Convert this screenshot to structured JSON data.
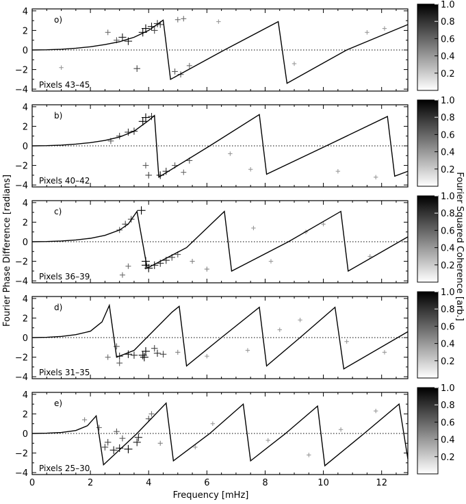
{
  "figure": {
    "xlabel": "Frequency [mHz]",
    "ylabel": "Fourier Phase Difference [radians]",
    "colorbar_label": "Fourier Squared Coherence [arb.]",
    "colorbar_ticks": [
      "1.0",
      "0.8",
      "0.6",
      "0.4",
      "0.2"
    ],
    "x_ticks": [
      "0",
      "2",
      "4",
      "6",
      "8",
      "10",
      "12"
    ],
    "y_ticks": [
      "4",
      "2",
      "0",
      "−2",
      "−4"
    ]
  },
  "chart_data": [
    {
      "type": "scatter",
      "panel": "o)",
      "pixels_label": "Pixels 43–45",
      "xlim": [
        0,
        12.9
      ],
      "ylim": [
        -4.2,
        4.2
      ],
      "zero_line": "dotted",
      "model_line": [
        [
          0,
          0
        ],
        [
          0.5,
          0.02
        ],
        [
          1,
          0.08
        ],
        [
          1.5,
          0.18
        ],
        [
          2,
          0.33
        ],
        [
          2.5,
          0.55
        ],
        [
          3,
          0.85
        ],
        [
          3.5,
          1.3
        ],
        [
          4,
          2.0
        ],
        [
          4.5,
          3.05
        ],
        [
          4.75,
          -3.0
        ],
        [
          6.6,
          0.0
        ],
        [
          8.45,
          2.9
        ],
        [
          8.75,
          -3.4
        ],
        [
          10.8,
          0.0
        ],
        [
          12.9,
          2.6
        ]
      ],
      "points": [
        [
          3.1,
          1.3,
          0.9
        ],
        [
          3.3,
          0.9,
          0.9
        ],
        [
          3.8,
          1.8,
          1.0
        ],
        [
          3.9,
          2.2,
          1.0
        ],
        [
          4.1,
          2.4,
          0.9
        ],
        [
          4.3,
          2.7,
          0.8
        ],
        [
          4.2,
          2.0,
          0.7
        ],
        [
          4.4,
          2.6,
          0.7
        ],
        [
          2.6,
          1.8,
          0.5
        ],
        [
          2.9,
          1.0,
          0.6
        ],
        [
          3.6,
          -1.9,
          0.7
        ],
        [
          4.9,
          -2.2,
          0.6
        ],
        [
          5.1,
          -2.5,
          0.6
        ],
        [
          5.4,
          -1.6,
          0.5
        ],
        [
          5.0,
          3.1,
          0.5
        ],
        [
          5.2,
          3.2,
          0.5
        ],
        [
          6.4,
          2.9,
          0.3
        ],
        [
          1.0,
          -1.8,
          0.3
        ],
        [
          9.0,
          -1.4,
          0.3
        ],
        [
          11.5,
          1.8,
          0.3
        ],
        [
          12.1,
          2.2,
          0.3
        ]
      ]
    },
    {
      "type": "scatter",
      "panel": "b)",
      "pixels_label": "Pixels 40–42",
      "xlim": [
        0,
        12.9
      ],
      "ylim": [
        -4.2,
        4.2
      ],
      "zero_line": "dotted",
      "model_line": [
        [
          0,
          0
        ],
        [
          0.5,
          0.02
        ],
        [
          1,
          0.08
        ],
        [
          1.5,
          0.18
        ],
        [
          2,
          0.33
        ],
        [
          2.5,
          0.55
        ],
        [
          3,
          0.9
        ],
        [
          3.5,
          1.5
        ],
        [
          4.0,
          2.6
        ],
        [
          4.2,
          3.1
        ],
        [
          4.35,
          -3.2
        ],
        [
          6.1,
          0.0
        ],
        [
          7.8,
          3.2
        ],
        [
          8.05,
          -2.9
        ],
        [
          10.1,
          0.0
        ],
        [
          12.2,
          3.0
        ],
        [
          12.45,
          -3.1
        ],
        [
          12.9,
          -2.6
        ]
      ],
      "points": [
        [
          3.8,
          2.5,
          1.0
        ],
        [
          3.9,
          2.9,
          1.0
        ],
        [
          3.5,
          1.5,
          0.8
        ],
        [
          3.3,
          1.4,
          0.8
        ],
        [
          3.0,
          1.0,
          0.7
        ],
        [
          2.7,
          0.5,
          0.6
        ],
        [
          4.1,
          3.0,
          0.8
        ],
        [
          4.4,
          -3.0,
          0.9
        ],
        [
          4.6,
          -2.6,
          0.8
        ],
        [
          4.9,
          -2.0,
          0.6
        ],
        [
          5.4,
          -1.5,
          0.6
        ],
        [
          3.9,
          -2.0,
          0.6
        ],
        [
          4.0,
          -3.0,
          0.7
        ],
        [
          5.2,
          -2.7,
          0.5
        ],
        [
          6.8,
          -0.8,
          0.3
        ],
        [
          7.5,
          -2.4,
          0.3
        ],
        [
          10.5,
          -2.6,
          0.3
        ],
        [
          11.8,
          -3.2,
          0.3
        ]
      ]
    },
    {
      "type": "scatter",
      "panel": "c)",
      "pixels_label": "Pixels 36–39",
      "xlim": [
        0,
        12.9
      ],
      "ylim": [
        -4.2,
        4.2
      ],
      "zero_line": "dotted",
      "model_line": [
        [
          0,
          0
        ],
        [
          0.5,
          0.02
        ],
        [
          1,
          0.08
        ],
        [
          1.5,
          0.18
        ],
        [
          2,
          0.35
        ],
        [
          2.5,
          0.65
        ],
        [
          3,
          1.2
        ],
        [
          3.3,
          1.8
        ],
        [
          3.6,
          3.1
        ],
        [
          3.95,
          -2.7
        ],
        [
          5.3,
          -0.6
        ],
        [
          6.6,
          3.1
        ],
        [
          6.85,
          -3.0
        ],
        [
          8.8,
          0.0
        ],
        [
          10.6,
          3.1
        ],
        [
          10.85,
          -3.0
        ],
        [
          12.9,
          0.5
        ]
      ],
      "points": [
        [
          3.75,
          3.2,
          1.0
        ],
        [
          3.9,
          -2.0,
          1.0
        ],
        [
          3.9,
          -2.4,
          1.0
        ],
        [
          4.0,
          -2.7,
          1.0
        ],
        [
          4.2,
          -2.4,
          0.9
        ],
        [
          4.4,
          -2.2,
          0.8
        ],
        [
          4.6,
          -1.9,
          0.8
        ],
        [
          4.8,
          -1.6,
          0.7
        ],
        [
          5.0,
          -1.3,
          0.6
        ],
        [
          3.4,
          2.3,
          0.7
        ],
        [
          3.2,
          1.8,
          0.7
        ],
        [
          3.0,
          1.2,
          0.6
        ],
        [
          3.3,
          -2.5,
          0.5
        ],
        [
          3.1,
          -3.4,
          0.5
        ],
        [
          5.5,
          -2.0,
          0.4
        ],
        [
          6.0,
          -2.8,
          0.4
        ],
        [
          7.6,
          1.4,
          0.3
        ],
        [
          8.2,
          -2.0,
          0.3
        ],
        [
          9.4,
          1.0,
          0.3
        ],
        [
          10.0,
          1.8,
          0.3
        ],
        [
          11.6,
          -1.5,
          0.3
        ]
      ]
    },
    {
      "type": "scatter",
      "panel": "d)",
      "pixels_label": "Pixels 31–35",
      "xlim": [
        0,
        12.9
      ],
      "ylim": [
        -4.2,
        4.2
      ],
      "zero_line": "dotted",
      "model_line": [
        [
          0,
          0
        ],
        [
          0.5,
          0.03
        ],
        [
          1,
          0.12
        ],
        [
          1.5,
          0.3
        ],
        [
          2,
          0.65
        ],
        [
          2.4,
          1.6
        ],
        [
          2.65,
          3.3
        ],
        [
          2.9,
          -2.0
        ],
        [
          3.5,
          -1.3
        ],
        [
          4.8,
          2.6
        ],
        [
          5.05,
          3.2
        ],
        [
          5.3,
          -2.9
        ],
        [
          6.5,
          0.0
        ],
        [
          7.8,
          3.1
        ],
        [
          8.05,
          -2.9
        ],
        [
          9.2,
          0.0
        ],
        [
          10.4,
          3.1
        ],
        [
          10.7,
          -3.2
        ],
        [
          12.9,
          0.6
        ]
      ],
      "points": [
        [
          3.8,
          -1.8,
          1.0
        ],
        [
          3.9,
          -1.4,
          1.0
        ],
        [
          3.85,
          -2.0,
          1.0
        ],
        [
          3.3,
          -1.7,
          0.9
        ],
        [
          3.5,
          -1.8,
          0.8
        ],
        [
          3.0,
          -1.9,
          0.8
        ],
        [
          4.3,
          -1.6,
          0.8
        ],
        [
          4.5,
          -1.7,
          0.7
        ],
        [
          4.2,
          -1.1,
          0.7
        ],
        [
          2.9,
          -0.9,
          0.6
        ],
        [
          3.0,
          -2.6,
          0.6
        ],
        [
          2.6,
          -2.0,
          0.5
        ],
        [
          5.0,
          -1.5,
          0.4
        ],
        [
          6.0,
          -1.9,
          0.3
        ],
        [
          7.4,
          -1.3,
          0.3
        ],
        [
          8.5,
          0.8,
          0.3
        ],
        [
          9.2,
          1.8,
          0.3
        ],
        [
          10.8,
          -0.4,
          0.3
        ],
        [
          12.1,
          -1.5,
          0.3
        ]
      ]
    },
    {
      "type": "scatter",
      "panel": "e)",
      "pixels_label": "Pixels 25–30",
      "xlim": [
        0,
        12.9
      ],
      "ylim": [
        -4.2,
        4.2
      ],
      "zero_line": "dotted",
      "model_line": [
        [
          0,
          0
        ],
        [
          0.5,
          0.03
        ],
        [
          1,
          0.1
        ],
        [
          1.5,
          0.3
        ],
        [
          1.9,
          0.8
        ],
        [
          2.2,
          1.8
        ],
        [
          2.45,
          -3.2
        ],
        [
          3.6,
          0.0
        ],
        [
          4.6,
          3.1
        ],
        [
          4.85,
          -2.8
        ],
        [
          6.1,
          0.0
        ],
        [
          7.25,
          3.0
        ],
        [
          7.5,
          -2.8
        ],
        [
          8.7,
          0.0
        ],
        [
          9.8,
          2.8
        ],
        [
          10.05,
          -3.3
        ],
        [
          11.4,
          0.0
        ],
        [
          12.6,
          3.0
        ],
        [
          12.9,
          -2.6
        ]
      ],
      "points": [
        [
          2.8,
          -1.7,
          0.9
        ],
        [
          3.0,
          -1.5,
          0.9
        ],
        [
          3.3,
          -1.6,
          1.0
        ],
        [
          3.6,
          -0.9,
          0.9
        ],
        [
          3.65,
          -0.4,
          0.9
        ],
        [
          2.6,
          -0.9,
          0.7
        ],
        [
          2.5,
          -1.4,
          0.7
        ],
        [
          2.9,
          0.2,
          0.6
        ],
        [
          3.1,
          -0.5,
          0.6
        ],
        [
          4.0,
          1.5,
          0.6
        ],
        [
          4.1,
          2.0,
          0.5
        ],
        [
          2.3,
          0.6,
          0.5
        ],
        [
          1.8,
          1.4,
          0.4
        ],
        [
          4.4,
          -1.0,
          0.4
        ],
        [
          5.6,
          -1.4,
          0.3
        ],
        [
          6.2,
          1.0,
          0.3
        ],
        [
          8.1,
          -0.7,
          0.3
        ],
        [
          9.5,
          -2.2,
          0.3
        ],
        [
          10.6,
          0.4,
          0.3
        ],
        [
          11.8,
          2.3,
          0.3
        ]
      ]
    }
  ]
}
